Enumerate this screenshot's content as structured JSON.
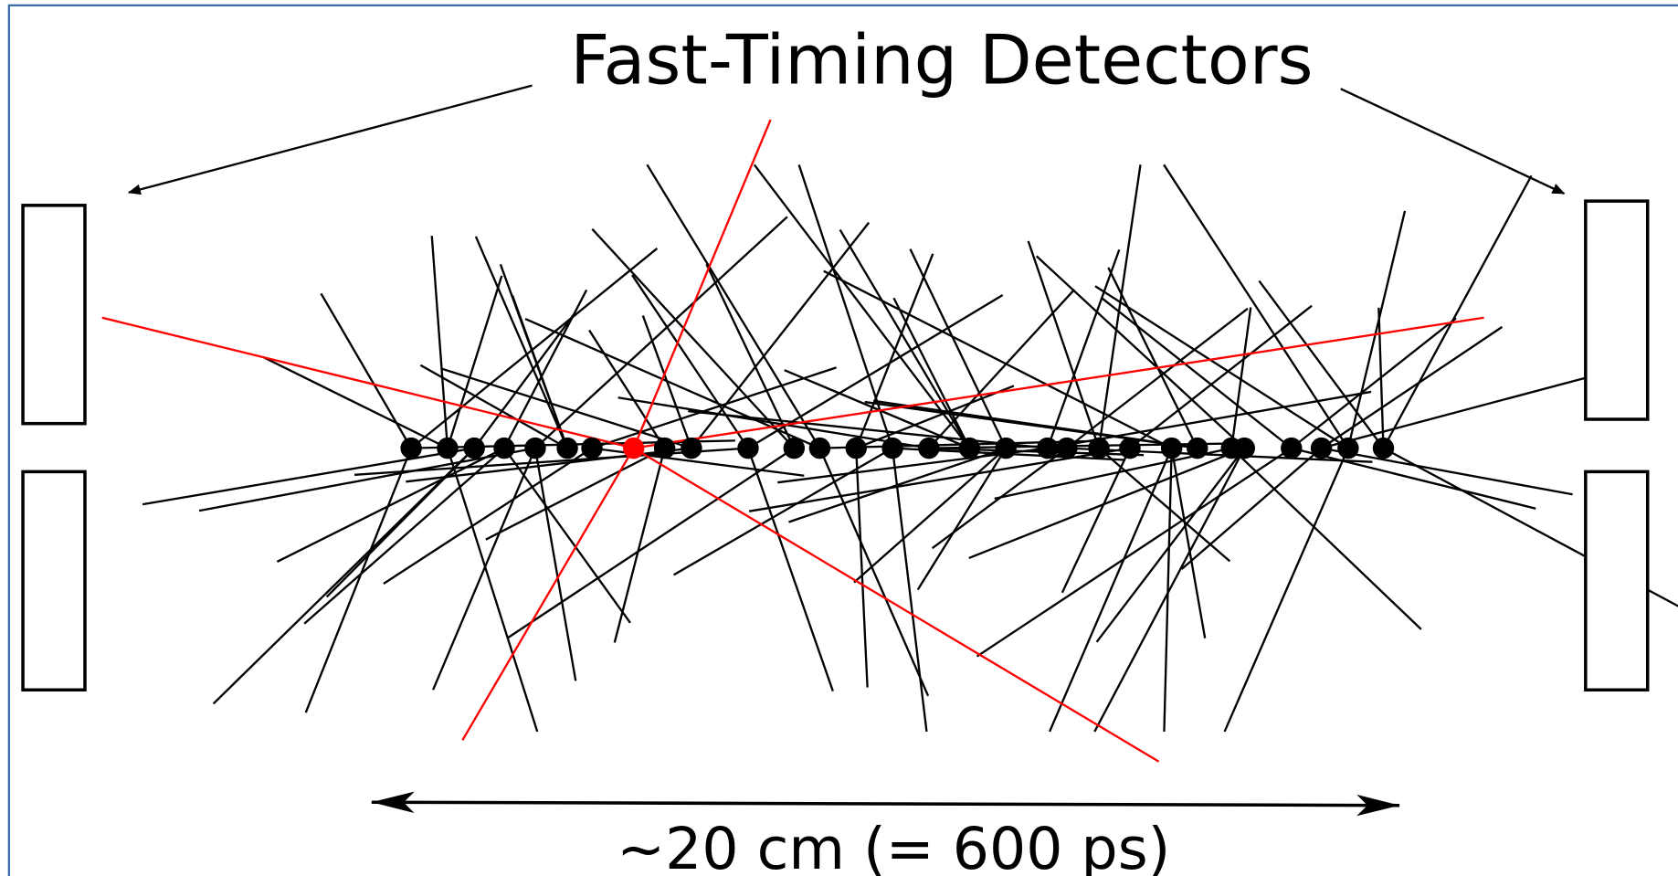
{
  "header": {
    "title": "Fast-Timing Detectors"
  },
  "scale": {
    "label": "~20 cm (= 600 ps)"
  }
}
